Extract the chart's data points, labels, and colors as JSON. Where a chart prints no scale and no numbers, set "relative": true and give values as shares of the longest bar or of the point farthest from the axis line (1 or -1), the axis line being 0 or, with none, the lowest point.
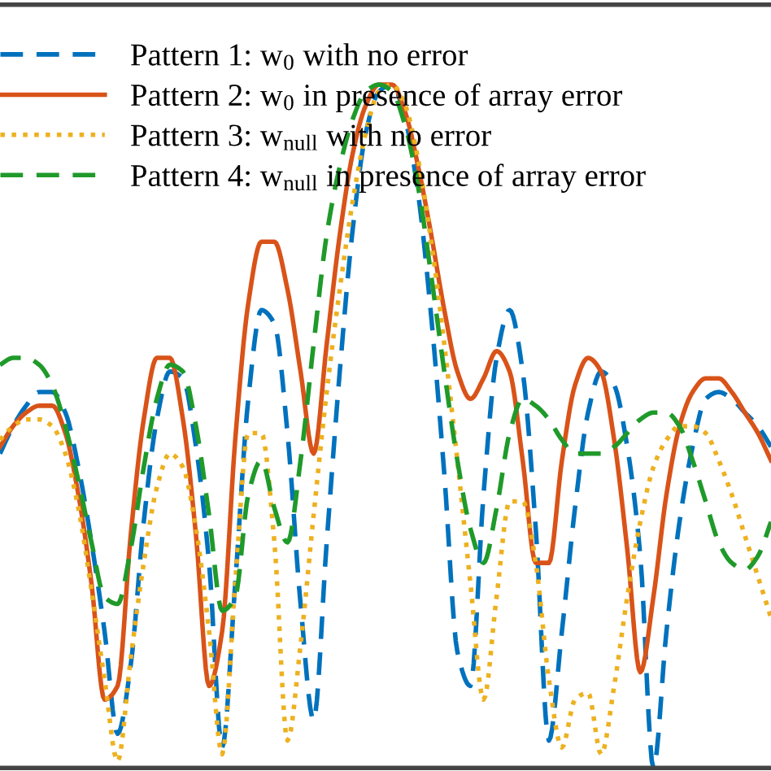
{
  "chart_data": {
    "type": "line",
    "relative": true,
    "categories": [
      null,
      null,
      null,
      null,
      null,
      null,
      null,
      null,
      null,
      null,
      null,
      null,
      null,
      null,
      null,
      null,
      null,
      null,
      null,
      null,
      null,
      null,
      null,
      null,
      null,
      null,
      null,
      null,
      null,
      null,
      null,
      null,
      null,
      null,
      null,
      null,
      null,
      null,
      null,
      null,
      null,
      null,
      null,
      null,
      null,
      null,
      null,
      null,
      null,
      null,
      null,
      null,
      null,
      null,
      null,
      null,
      null,
      null,
      null,
      null
    ],
    "series": [
      {
        "name": "Pattern 1: w$_{0}$ with no error",
        "color": "#0072bd",
        "line_style": "dashed",
        "values": [
          0.46,
          0.5,
          0.53,
          0.55,
          0.55,
          0.52,
          0.44,
          0.33,
          0.2,
          0.05,
          0.15,
          0.36,
          0.51,
          0.58,
          0.57,
          0.47,
          0.3,
          0.03,
          0.27,
          0.54,
          0.67,
          0.65,
          0.49,
          0.24,
          0.07,
          0.33,
          0.58,
          0.79,
          0.93,
          0.99,
          1.0,
          0.95,
          0.84,
          0.66,
          0.43,
          0.17,
          0.12,
          0.4,
          0.6,
          0.67,
          0.58,
          0.35,
          0.04,
          0.2,
          0.38,
          0.52,
          0.58,
          0.56,
          0.47,
          0.31,
          0.0,
          0.2,
          0.36,
          0.47,
          0.54,
          0.55,
          0.54,
          0.52,
          0.5,
          0.47
        ]
      },
      {
        "name": "Pattern 2: w$_{0}$ in presence of array error",
        "color": "#d95319",
        "line_style": "solid",
        "values": [
          0.47,
          0.5,
          0.52,
          0.53,
          0.53,
          0.49,
          0.4,
          0.27,
          0.1,
          0.12,
          0.34,
          0.51,
          0.6,
          0.6,
          0.51,
          0.34,
          0.12,
          0.2,
          0.48,
          0.68,
          0.77,
          0.77,
          0.7,
          0.58,
          0.46,
          0.62,
          0.78,
          0.9,
          0.97,
          1.0,
          1.0,
          0.96,
          0.88,
          0.78,
          0.67,
          0.58,
          0.54,
          0.57,
          0.61,
          0.58,
          0.45,
          0.3,
          0.3,
          0.45,
          0.56,
          0.6,
          0.58,
          0.48,
          0.32,
          0.14,
          0.25,
          0.4,
          0.5,
          0.55,
          0.57,
          0.57,
          0.55,
          0.52,
          0.49,
          0.45
        ]
      },
      {
        "name": "Pattern 3: w$_{null}$ with no error",
        "color": "#edb120",
        "line_style": "dotted",
        "values": [
          0.48,
          0.5,
          0.51,
          0.51,
          0.5,
          0.46,
          0.38,
          0.26,
          0.13,
          0.01,
          0.16,
          0.3,
          0.41,
          0.46,
          0.44,
          0.35,
          0.2,
          0.02,
          0.27,
          0.49,
          0.49,
          0.33,
          0.04,
          0.18,
          0.37,
          0.55,
          0.7,
          0.83,
          0.93,
          0.99,
          1.0,
          0.97,
          0.89,
          0.77,
          0.62,
          0.45,
          0.27,
          0.1,
          0.25,
          0.39,
          0.39,
          0.3,
          0.13,
          0.03,
          0.1,
          0.11,
          0.02,
          0.12,
          0.25,
          0.36,
          0.44,
          0.48,
          0.5,
          0.5,
          0.49,
          0.45,
          0.4,
          0.34,
          0.28,
          0.22
        ]
      },
      {
        "name": "Pattern 4: w$_{null}$ in presence of array error",
        "color": "#1f9a2a",
        "line_style": "dashed",
        "values": [
          0.59,
          0.6,
          0.6,
          0.59,
          0.56,
          0.5,
          0.42,
          0.33,
          0.25,
          0.24,
          0.32,
          0.44,
          0.54,
          0.59,
          0.58,
          0.5,
          0.37,
          0.23,
          0.25,
          0.4,
          0.45,
          0.38,
          0.33,
          0.45,
          0.62,
          0.78,
          0.88,
          0.95,
          0.99,
          1.0,
          0.99,
          0.94,
          0.85,
          0.72,
          0.58,
          0.45,
          0.35,
          0.3,
          0.38,
          0.49,
          0.54,
          0.53,
          0.51,
          0.48,
          0.46,
          0.46,
          0.46,
          0.47,
          0.49,
          0.51,
          0.52,
          0.52,
          0.5,
          0.45,
          0.39,
          0.33,
          0.3,
          0.29,
          0.31,
          0.36
        ]
      }
    ],
    "legend": "top left"
  }
}
